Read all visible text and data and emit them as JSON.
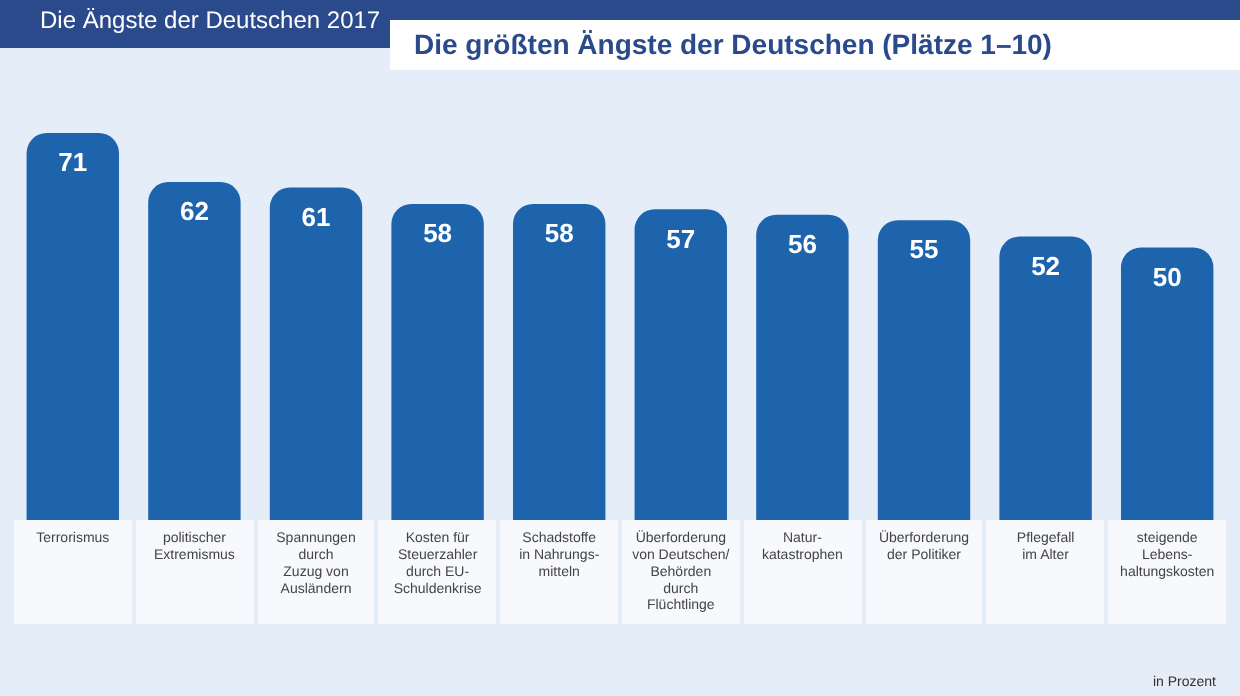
{
  "chart_data": {
    "type": "bar",
    "subtitle": "Die Ängste der Deutschen 2017",
    "title": "Die größten Ängste der Deutschen (Plätze 1–10)",
    "categories": [
      "Terrorismus",
      "politischer\nExtremismus",
      "Spannungen\ndurch\nZuzug von\nAusländern",
      "Kosten für\nSteuerzahler\ndurch EU-\nSchuldenkrise",
      "Schadstoffe\nin Nahrungs-\nmitteln",
      "Überforderung\nvon Deutschen/\nBehörden\ndurch\nFlüchtlinge",
      "Natur-\nkatastrophen",
      "Überforderung\nder Politiker",
      "Pflegefall\nim Alter",
      "steigende\nLebens-\nhaltungskosten"
    ],
    "values": [
      71,
      62,
      61,
      58,
      58,
      57,
      56,
      55,
      52,
      50
    ],
    "color": "#1e64ac",
    "data_labels": true,
    "grid": false,
    "legend": false,
    "annotations": [
      "in Prozent"
    ]
  }
}
